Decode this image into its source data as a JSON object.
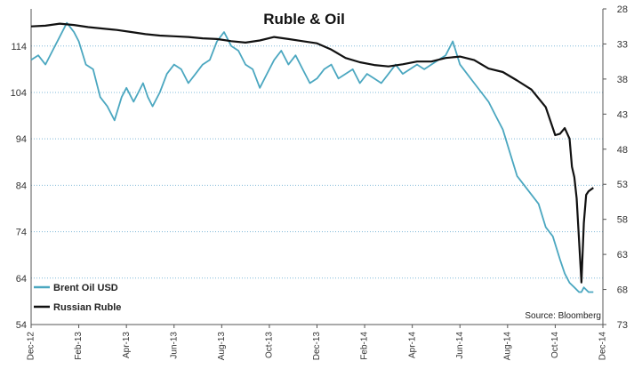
{
  "chart_data": {
    "type": "line",
    "title": "Ruble & Oil",
    "source": "Source: Bloomberg",
    "left_axis": {
      "ticks": [
        54,
        64,
        74,
        84,
        94,
        104,
        114
      ],
      "ylim": [
        54,
        122
      ],
      "ylabel": ""
    },
    "right_axis": {
      "ticks": [
        28,
        33,
        38,
        43,
        48,
        53,
        58,
        63,
        68,
        73
      ],
      "ylim": [
        28,
        73
      ],
      "inverted": true,
      "ylabel": ""
    },
    "x_tick_labels": [
      "Dec-12",
      "Feb-13",
      "Apr-13",
      "Jun-13",
      "Aug-13",
      "Oct-13",
      "Dec-13",
      "Feb-14",
      "Apr-14",
      "Jun-14",
      "Aug-14",
      "Oct-14",
      "Dec-14"
    ],
    "grid": "horizontal dotted",
    "legend_position": "bottom-left",
    "series": [
      {
        "name": "Brent Oil USD",
        "axis": "left",
        "color": "#4ba7c0",
        "x": [
          0,
          0.15,
          0.3,
          0.45,
          0.6,
          0.75,
          0.9,
          1.0,
          1.15,
          1.3,
          1.45,
          1.6,
          1.75,
          1.9,
          2.0,
          2.15,
          2.25,
          2.35,
          2.45,
          2.55,
          2.7,
          2.85,
          3.0,
          3.15,
          3.3,
          3.45,
          3.6,
          3.75,
          3.9,
          4.05,
          4.2,
          4.35,
          4.5,
          4.65,
          4.8,
          4.95,
          5.1,
          5.25,
          5.4,
          5.55,
          5.7,
          5.85,
          6.0,
          6.15,
          6.3,
          6.45,
          6.6,
          6.75,
          6.9,
          7.05,
          7.2,
          7.35,
          7.5,
          7.65,
          7.8,
          7.95,
          8.1,
          8.25,
          8.4,
          8.55,
          8.7,
          8.85,
          9.0,
          9.15,
          9.3,
          9.45,
          9.6,
          9.75,
          9.9,
          10.05,
          10.2,
          10.35,
          10.5,
          10.65,
          10.8,
          10.95,
          11.1,
          11.2,
          11.3,
          11.4,
          11.5,
          11.55,
          11.6,
          11.7,
          11.8
        ],
        "values": [
          111,
          112,
          110,
          113,
          116,
          119,
          117,
          115,
          110,
          109,
          103,
          101,
          98,
          103,
          105,
          102,
          104,
          106,
          103,
          101,
          104,
          108,
          110,
          109,
          106,
          108,
          110,
          111,
          115,
          117,
          114,
          113,
          110,
          109,
          105,
          108,
          111,
          113,
          110,
          112,
          109,
          106,
          107,
          109,
          110,
          107,
          108,
          109,
          106,
          108,
          107,
          106,
          108,
          110,
          108,
          109,
          110,
          109,
          110,
          111,
          112,
          115,
          110,
          108,
          106,
          104,
          102,
          99,
          96,
          91,
          86,
          84,
          82,
          80,
          75,
          73,
          68,
          65,
          63,
          62,
          61,
          61,
          62,
          61,
          61
        ]
      },
      {
        "name": "Russian Ruble",
        "axis": "right",
        "color": "#111111",
        "x": [
          0,
          0.3,
          0.6,
          0.9,
          1.2,
          1.5,
          1.8,
          2.1,
          2.4,
          2.7,
          3.0,
          3.3,
          3.6,
          3.9,
          4.2,
          4.5,
          4.8,
          5.1,
          5.4,
          5.7,
          6.0,
          6.3,
          6.6,
          6.9,
          7.2,
          7.5,
          7.8,
          8.1,
          8.4,
          8.7,
          9.0,
          9.3,
          9.6,
          9.9,
          10.2,
          10.5,
          10.8,
          11.0,
          11.1,
          11.2,
          11.3,
          11.35,
          11.4,
          11.45,
          11.5,
          11.55,
          11.6,
          11.65,
          11.7,
          11.8
        ],
        "values": [
          30.5,
          30.4,
          30.1,
          30.3,
          30.6,
          30.8,
          31.0,
          31.3,
          31.6,
          31.8,
          31.9,
          32.0,
          32.2,
          32.3,
          32.6,
          32.8,
          32.5,
          32.0,
          32.3,
          32.6,
          32.9,
          33.8,
          35.0,
          35.6,
          36.0,
          36.2,
          35.9,
          35.5,
          35.5,
          35.0,
          34.8,
          35.3,
          36.5,
          37.0,
          38.2,
          39.5,
          42.0,
          46.0,
          45.8,
          45.0,
          46.5,
          50.5,
          52.0,
          55.0,
          61.0,
          67.0,
          58.5,
          54.5,
          54.0,
          53.5
        ]
      }
    ]
  }
}
